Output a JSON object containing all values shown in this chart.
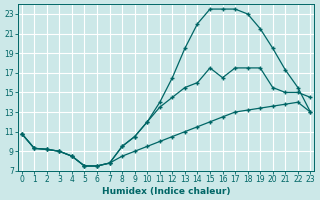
{
  "xlabel": "Humidex (Indice chaleur)",
  "bg_color": "#cce8e8",
  "grid_color": "#b8d8d8",
  "line_color": "#006666",
  "xlim": [
    -0.3,
    23.3
  ],
  "ylim": [
    7,
    24
  ],
  "xticks": [
    0,
    1,
    2,
    3,
    4,
    5,
    6,
    7,
    8,
    9,
    10,
    11,
    12,
    13,
    14,
    15,
    16,
    17,
    18,
    19,
    20,
    21,
    22,
    23
  ],
  "yticks": [
    7,
    9,
    11,
    13,
    15,
    17,
    19,
    21,
    23
  ],
  "line1_x": [
    0,
    1,
    2,
    3,
    4,
    5,
    6,
    7,
    8,
    9,
    10,
    11,
    12,
    13,
    14,
    15,
    16,
    17,
    18,
    19,
    20,
    21,
    22,
    23
  ],
  "line1_y": [
    10.8,
    9.3,
    9.2,
    9.0,
    8.5,
    7.5,
    7.5,
    7.8,
    8.5,
    9.0,
    9.5,
    10.0,
    10.5,
    11.0,
    11.5,
    12.0,
    12.5,
    13.0,
    13.2,
    13.4,
    13.6,
    13.8,
    14.0,
    13.0
  ],
  "line2_x": [
    0,
    1,
    2,
    3,
    4,
    5,
    6,
    7,
    8,
    9,
    10,
    11,
    12,
    13,
    14,
    15,
    16,
    17,
    18,
    19,
    20,
    21,
    22,
    23
  ],
  "line2_y": [
    10.8,
    9.3,
    9.2,
    9.0,
    8.5,
    7.5,
    7.5,
    7.8,
    9.5,
    10.5,
    12.0,
    14.0,
    16.5,
    19.5,
    22.0,
    23.5,
    23.5,
    23.5,
    23.0,
    21.5,
    19.5,
    17.3,
    15.5,
    13.0
  ],
  "line3_x": [
    0,
    1,
    2,
    3,
    4,
    5,
    6,
    7,
    8,
    9,
    10,
    11,
    12,
    13,
    14,
    15,
    16,
    17,
    18,
    19,
    20,
    21,
    22,
    23
  ],
  "line3_y": [
    10.8,
    9.3,
    9.2,
    9.0,
    8.5,
    7.5,
    7.5,
    7.8,
    9.5,
    10.5,
    12.0,
    13.5,
    14.5,
    15.5,
    16.0,
    17.5,
    16.5,
    17.5,
    17.5,
    17.5,
    15.5,
    15.0,
    15.0,
    14.5
  ]
}
